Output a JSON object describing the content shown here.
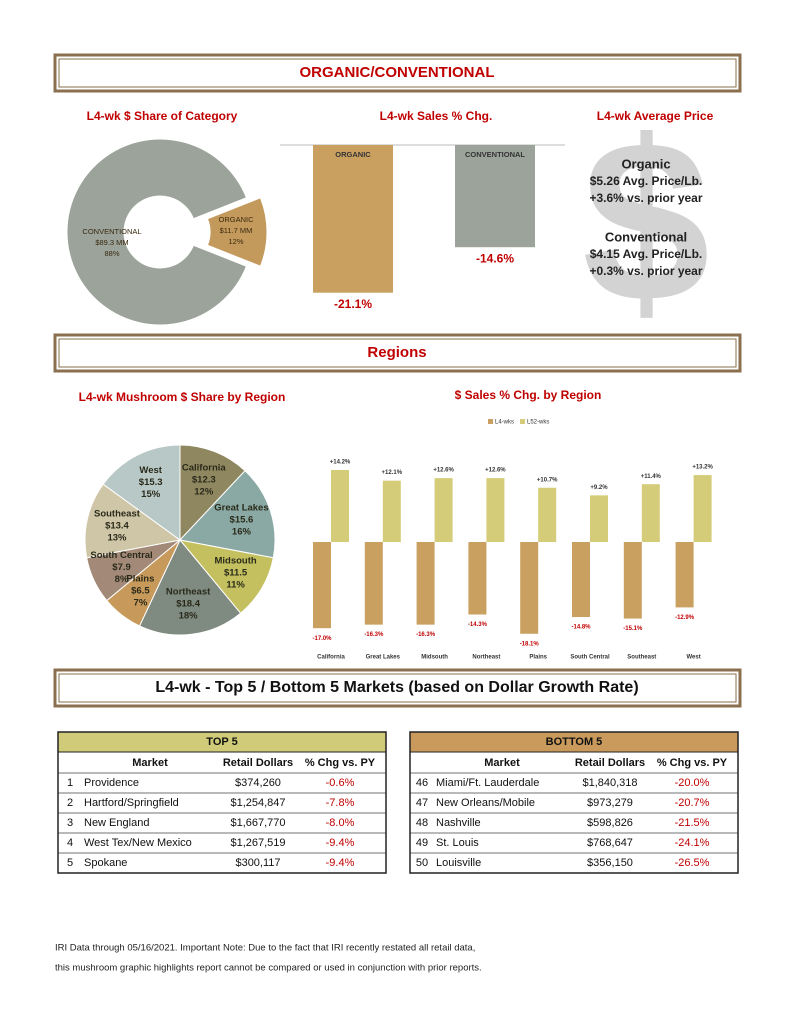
{
  "section_titles": [
    "ORGANIC/CONVENTIONAL",
    "Regions",
    "L4-wk - Top 5 / Bottom 5 Markets (based on Dollar Growth Rate)"
  ],
  "chart_data": [
    {
      "type": "donut",
      "title": "L4-wk $ Share of Category",
      "categories": [
        "CONVENTIONAL",
        "ORGANIC"
      ],
      "values": [
        88,
        12
      ],
      "value_labels": [
        "88%",
        "12%"
      ],
      "amounts": [
        "$89.3 MM",
        "$11.7 MM"
      ],
      "colors": [
        "#9ba39a",
        "#c49a5c"
      ]
    },
    {
      "type": "bar",
      "title": "L4-wk Sales % Chg.",
      "categories": [
        "ORGANIC",
        "CONVENTIONAL"
      ],
      "values": [
        -21.1,
        -14.6
      ],
      "value_labels": [
        "-21.1%",
        "-14.6%"
      ],
      "colors": [
        "#c9a060",
        "#9ba39a"
      ]
    },
    {
      "type": "pie",
      "title": "L4-wk Mushroom $ Share by Region",
      "categories": [
        "California",
        "Great Lakes",
        "Midsouth",
        "Northeast",
        "Plains",
        "South Central",
        "Southeast",
        "West"
      ],
      "values": [
        12,
        16,
        11,
        18,
        7,
        8,
        13,
        15
      ],
      "value_labels": [
        "12%",
        "16%",
        "11%",
        "18%",
        "7%",
        "8%",
        "13%",
        "15%"
      ],
      "amounts": [
        "$12.3",
        "$15.6",
        "$11.5",
        "$18.4",
        "$6.5",
        "$7.9",
        "$13.4",
        "$15.3"
      ],
      "colors": [
        "#8f8760",
        "#8aa8a4",
        "#c4c060",
        "#7f8a80",
        "#c7995a",
        "#a38a78",
        "#cfc6a8",
        "#b8c8c6"
      ]
    },
    {
      "type": "grouped-bar",
      "title": "$ Sales % Chg. by Region",
      "categories": [
        "California",
        "Great Lakes",
        "Midsouth",
        "Northeast",
        "Plains",
        "South Central",
        "Southeast",
        "West"
      ],
      "series": [
        {
          "name": "L4-wks",
          "color": "#c9a060",
          "values": [
            -17.0,
            -16.3,
            -16.3,
            -14.3,
            -18.1,
            -14.8,
            -15.1,
            -12.9
          ],
          "value_labels": [
            "-17.0%",
            "-16.3%",
            "-16.3%",
            "-14.3%",
            "-18.1%",
            "-14.8%",
            "-15.1%",
            "-12.9%"
          ]
        },
        {
          "name": "L52-wks",
          "color": "#d4cc78",
          "values": [
            14.2,
            12.1,
            12.6,
            12.6,
            10.7,
            9.2,
            11.4,
            13.2
          ],
          "value_labels": [
            "+14.2%",
            "+12.1%",
            "+12.6%",
            "+12.6%",
            "+10.7%",
            "+9.2%",
            "+11.4%",
            "+13.2%"
          ]
        }
      ]
    }
  ],
  "average_price": {
    "title": "L4-wk Average Price",
    "symbol": "$",
    "items": [
      {
        "name": "Organic",
        "price": "$5.26 Avg. Price/Lb.",
        "change": "+3.6% vs. prior year"
      },
      {
        "name": "Conventional",
        "price": "$4.15  Avg. Price/Lb.",
        "change": "+0.3% vs. prior year"
      }
    ]
  },
  "tables": [
    {
      "title": "TOP 5",
      "columns": [
        "Market",
        "Retail Dollars",
        "% Chg vs. PY"
      ],
      "rows": [
        [
          1,
          "Providence",
          "$374,260",
          "-0.6%"
        ],
        [
          2,
          "Hartford/Springfield",
          "$1,254,847",
          "-7.8%"
        ],
        [
          3,
          "New England",
          "$1,667,770",
          "-8.0%"
        ],
        [
          4,
          "West Tex/New Mexico",
          "$1,267,519",
          "-9.4%"
        ],
        [
          5,
          "Spokane",
          "$300,117",
          "-9.4%"
        ]
      ]
    },
    {
      "title": "BOTTOM 5",
      "columns": [
        "Market",
        "Retail Dollars",
        "% Chg vs. PY"
      ],
      "rows": [
        [
          46,
          "Miami/Ft. Lauderdale",
          "$1,840,318",
          "-20.0%"
        ],
        [
          47,
          "New Orleans/Mobile",
          "$973,279",
          "-20.7%"
        ],
        [
          48,
          "Nashville",
          "$598,826",
          "-21.5%"
        ],
        [
          49,
          "St. Louis",
          "$768,647",
          "-24.1%"
        ],
        [
          50,
          "Louisville",
          "$356,150",
          "-26.5%"
        ]
      ]
    }
  ],
  "footer": [
    "IRI Data through 05/16/2021. Important Note: Due to the fact that IRI recently restated all retail data,",
    "this mushroom graphic highlights report cannot be compared or used in conjunction with prior reports."
  ]
}
